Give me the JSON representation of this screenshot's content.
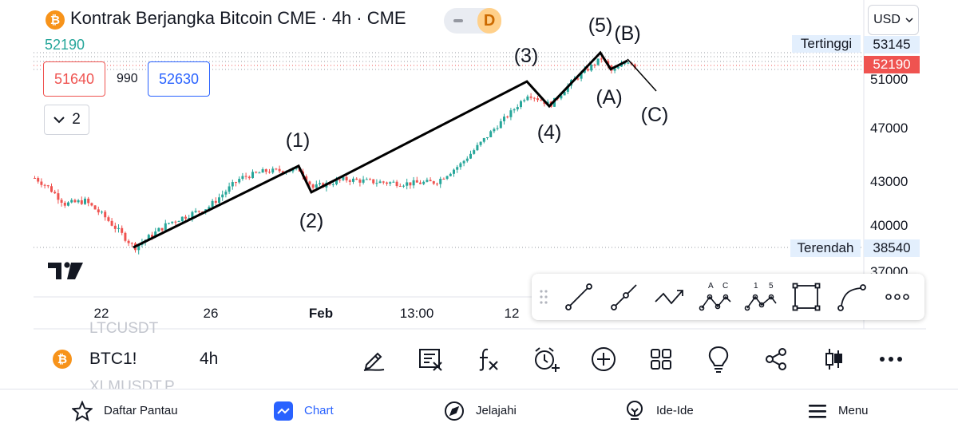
{
  "header": {
    "title": "Kontrak Berjangka Bitcoin CME · 4h · CME",
    "symbol_icon_glyph": "₿",
    "chart_type_label": "D",
    "currency": "USD",
    "last_price_readout": "52190"
  },
  "trade": {
    "sell_price": "51640",
    "spread": "990",
    "buy_price": "52630",
    "collapse_count": "2"
  },
  "price_axis": {
    "labels": [
      "51000",
      "47000",
      "43000",
      "40000",
      "37000"
    ],
    "high_label": "Tertinggi",
    "high_value": "53145",
    "last_value": "52190",
    "low_label": "Terendah",
    "low_value": "38540"
  },
  "time_axis": {
    "labels": [
      "22",
      "26",
      "Feb",
      "13:00",
      "12"
    ]
  },
  "elliott_waves": {
    "labels": [
      "(1)",
      "(2)",
      "(3)",
      "(4)",
      "(5)",
      "(A)",
      "(B)",
      "(C)"
    ]
  },
  "drawing_toolbar": {
    "tools": [
      "drag-handle-icon",
      "trend-line-icon",
      "ray-icon",
      "polyline-icon",
      "abc-pattern-icon",
      "elliott-impulse-icon",
      "rectangle-icon",
      "curve-icon",
      "more-icon"
    ]
  },
  "background_watermarks": {
    "top": "LTCUSDT",
    "bottom": "XLMUSDT.P"
  },
  "symbol_bar": {
    "symbol": "BTC1!",
    "timeframe": "4h",
    "icons": [
      "pencil-icon",
      "order-panel-icon",
      "indicators-icon",
      "alert-icon",
      "add-icon",
      "layouts-icon",
      "ideas-bulb-icon",
      "share-icon",
      "chart-style-icon",
      "more-icon"
    ]
  },
  "bottom_nav": {
    "items": [
      {
        "label": "Daftar Pantau",
        "icon": "star-icon",
        "active": false
      },
      {
        "label": "Chart",
        "icon": "chart-icon",
        "active": true
      },
      {
        "label": "Jelajahi",
        "icon": "compass-icon",
        "active": false
      },
      {
        "label": "Ide-Ide",
        "icon": "lightbulb-icon",
        "active": false
      },
      {
        "label": "Menu",
        "icon": "menu-icon",
        "active": false
      }
    ]
  },
  "colors": {
    "up": "#26a69a",
    "down": "#ef5350",
    "accent": "#2962ff",
    "bitcoin": "#f7931a"
  },
  "chart_data": {
    "type": "candlestick",
    "interval": "4h",
    "y_axis_ticks": [
      51000,
      47000,
      43000,
      40000,
      37000
    ],
    "high": 53145,
    "low": 38540,
    "last": 52190,
    "elliott_wave_points": [
      {
        "label": "start",
        "value": 38540
      },
      {
        "label": "(1)",
        "value": 44200
      },
      {
        "label": "(2)",
        "value": 42300
      },
      {
        "label": "(3)",
        "value": 50800
      },
      {
        "label": "(4)",
        "value": 48800
      },
      {
        "label": "(5)",
        "value": 53145
      },
      {
        "label": "(A)",
        "value": 51800
      },
      {
        "label": "(B)",
        "value": 52500
      },
      {
        "label": "(C)",
        "value": 50000
      }
    ]
  }
}
